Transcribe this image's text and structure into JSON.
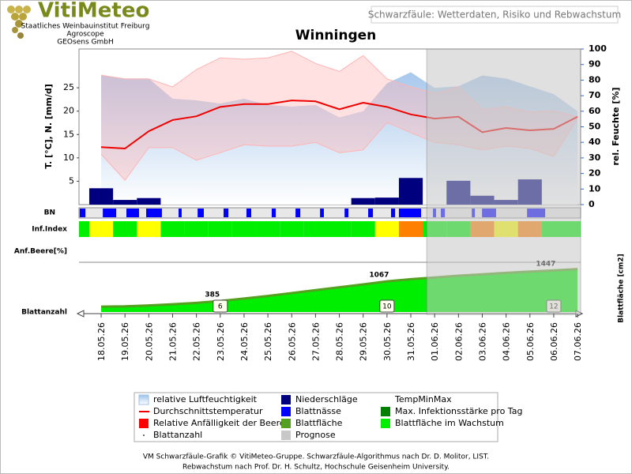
{
  "header": {
    "logo": "VitiMeteo",
    "lines": [
      "Staatliches Weinbauinstitut Freiburg",
      "Agroscope",
      "GEOsens GmbH"
    ],
    "banner": "Schwarzfäule: Wetterdaten, Risiko und Rebwachstum"
  },
  "chart_data": {
    "type": "combo",
    "title": "Winningen",
    "categories": [
      "18.05.26",
      "19.05.26",
      "20.05.26",
      "21.05.26",
      "22.05.26",
      "23.05.26",
      "24.05.26",
      "25.05.26",
      "26.05.26",
      "27.05.26",
      "28.05.26",
      "29.05.26",
      "30.05.26",
      "31.05.26",
      "01.06.26",
      "02.06.26",
      "03.06.26",
      "04.06.26",
      "05.06.26",
      "06.06.26",
      "07.06.26"
    ],
    "xlim": [
      -0.93,
      20.13
    ],
    "ylabel": "T. [°C], N. [mm/d]",
    "ylim": [
      0,
      33.3
    ],
    "yticks": [
      5,
      10,
      15,
      20,
      25
    ],
    "y2label": "rel. Feuchte [%]",
    "y2lim": [
      0,
      100
    ],
    "y2ticks": [
      0,
      10,
      20,
      30,
      40,
      50,
      60,
      70,
      80,
      90,
      100
    ],
    "series": [
      {
        "name": "relative Luftfeuchtigkeit",
        "type": "area",
        "axis": "y2",
        "color": "#9ec2ea",
        "values": [
          83,
          81,
          81,
          68,
          67,
          65,
          68,
          64,
          63,
          64,
          56,
          60,
          78,
          85,
          75,
          76,
          83,
          81,
          76,
          71,
          60
        ]
      },
      {
        "name": "Niederschläge",
        "type": "bar",
        "color": "#00007f",
        "values": [
          3.5,
          1.0,
          1.4,
          0,
          0,
          0,
          0,
          0,
          0,
          0,
          0,
          1.4,
          1.5,
          5.7,
          0,
          5.1,
          1.9,
          1.0,
          5.4,
          0,
          0
        ]
      },
      {
        "name": "TempMinMax",
        "type": "band",
        "color": "#ffb4b4",
        "high": [
          27.7,
          26.9,
          26.9,
          25.2,
          28.9,
          31.4,
          31.1,
          31.4,
          32.8,
          30.2,
          28.5,
          31.9,
          26.9,
          25.2,
          23.8,
          25.2,
          20.4,
          20.9,
          19.8,
          20.1,
          18.8
        ],
        "low": [
          10.8,
          5.2,
          12.2,
          12.2,
          9.5,
          11.1,
          12.8,
          12.5,
          12.5,
          13.3,
          11.1,
          11.7,
          17.6,
          15.4,
          13.3,
          12.8,
          11.7,
          12.5,
          12.0,
          10.3,
          18.4
        ]
      },
      {
        "name": "Durchschnittstemperatur",
        "type": "line",
        "color": "#ee0000",
        "values": [
          12.3,
          12.0,
          15.7,
          18.1,
          18.9,
          20.9,
          21.5,
          21.5,
          22.3,
          22.1,
          20.4,
          21.8,
          20.9,
          19.3,
          18.4,
          18.8,
          15.5,
          16.4,
          15.9,
          16.2,
          18.8
        ]
      }
    ],
    "bn": {
      "label": "BN",
      "name": "Blattnässe",
      "color": "#0000ff",
      "start": [
        -0.9,
        0.07,
        1.06,
        1.89,
        3.25,
        4.05,
        5.14,
        6.1,
        7.16,
        8.16,
        9.19,
        10.22,
        11.21,
        12.17,
        12.5,
        13.93,
        14.26,
        15.56,
        15.99,
        17.88
      ],
      "end": [
        -0.66,
        0.63,
        1.59,
        2.55,
        3.38,
        4.31,
        5.34,
        6.3,
        7.33,
        8.36,
        9.35,
        10.38,
        11.41,
        12.34,
        13.43,
        14.06,
        14.43,
        15.69,
        16.58,
        18.64
      ]
    },
    "inf_index": {
      "label": "Inf.Index",
      "name": "Max. Infektionsstärke pro Tag",
      "color": "#007f00",
      "level_colors": [
        "#00ee00",
        "#ffff00",
        "#ff8000"
      ],
      "levels": [
        1,
        0,
        1,
        0,
        0,
        0,
        0,
        0,
        0,
        0,
        0,
        0,
        1,
        2,
        0,
        0,
        2,
        1,
        2,
        0,
        0
      ]
    },
    "berry": {
      "label": "Anf.Beere[%]",
      "name": "Relative Anfälligkeit der Beere",
      "color": "#ff0000",
      "values": []
    },
    "leaf_area": {
      "ylabel": "Blattfläche [cm2]",
      "ylim": [
        0,
        1700
      ],
      "name": "Blattfläche",
      "color": "#55a020",
      "growth": {
        "name": "Blattfläche im Wachstum",
        "color": "#00ee00"
      },
      "values": [
        190,
        200,
        230,
        270,
        320,
        385,
        470,
        560,
        660,
        760,
        860,
        960,
        1067,
        1140,
        1200,
        1260,
        1310,
        1360,
        1405,
        1447,
        1490
      ]
    },
    "leaf_count": {
      "name": "Blattanzahl",
      "dates": [
        "23.05.26",
        "30.05.26",
        "06.06.26"
      ],
      "values": [
        6,
        10,
        12
      ]
    },
    "forecast": {
      "name": "Prognose",
      "color": "#c8c8c8",
      "start": 13.67
    }
  },
  "footer": [
    "VM Schwarzfäule-Grafik © VitiMeteo-Gruppe. Schwarzfäule-Algorithmus nach Dr. D. Molitor, LIST.",
    "Rebwachstum nach Prof. Dr. H. Schultz, Hochschule Geisenheim University."
  ]
}
